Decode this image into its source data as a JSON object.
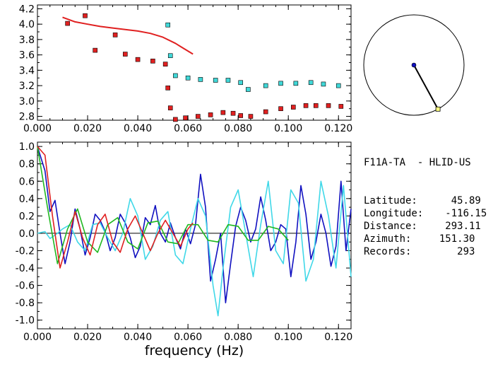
{
  "station": {
    "pair": "F11A-TA  - HLID-US",
    "rows": [
      {
        "label": "Latitude:",
        "value": "45.89"
      },
      {
        "label": "Longitude:",
        "value": "-116.15"
      },
      {
        "label": "Distance:",
        "value": "293.11"
      },
      {
        "label": "Azimuth:",
        "value": "151.30"
      },
      {
        "label": "Records:",
        "value": "293"
      }
    ]
  },
  "chart_data": [
    {
      "type": "scatter",
      "title": "",
      "xlabel": "",
      "ylabel": "",
      "xlim": [
        0.0,
        0.125
      ],
      "ylim": [
        2.75,
        4.25
      ],
      "x_ticks": [
        "0.000",
        "0.020",
        "0.040",
        "0.060",
        "0.080",
        "0.100",
        "0.120"
      ],
      "y_ticks": [
        "2.8",
        "3.0",
        "3.2",
        "3.4",
        "3.6",
        "3.8",
        "4.0",
        "4.2"
      ],
      "series": [
        {
          "color": "#e02020",
          "marker": "square",
          "x": [
            0.012,
            0.019,
            0.023,
            0.031,
            0.035,
            0.04,
            0.046,
            0.051,
            0.052,
            0.053,
            0.055,
            0.059,
            0.064,
            0.069,
            0.074,
            0.078,
            0.081,
            0.085,
            0.091,
            0.097,
            0.102,
            0.107,
            0.111,
            0.116,
            0.121
          ],
          "y": [
            4.01,
            4.11,
            3.66,
            3.86,
            3.61,
            3.54,
            3.52,
            3.48,
            3.17,
            2.91,
            2.76,
            2.78,
            2.8,
            2.82,
            2.85,
            2.84,
            2.81,
            2.8,
            2.86,
            2.9,
            2.92,
            2.94,
            2.94,
            2.94,
            2.93
          ]
        },
        {
          "color": "#40d8d8",
          "marker": "square",
          "x": [
            0.052,
            0.053,
            0.055,
            0.06,
            0.065,
            0.071,
            0.076,
            0.081,
            0.084,
            0.091,
            0.097,
            0.103,
            0.109,
            0.114,
            0.12
          ],
          "y": [
            3.99,
            3.59,
            3.33,
            3.3,
            3.28,
            3.27,
            3.27,
            3.24,
            3.15,
            3.2,
            3.23,
            3.23,
            3.24,
            3.22,
            3.2
          ]
        },
        {
          "color": "#e02020",
          "marker": "line",
          "x": [
            0.01,
            0.015,
            0.02,
            0.025,
            0.03,
            0.035,
            0.04,
            0.045,
            0.05,
            0.055,
            0.058,
            0.062
          ],
          "y": [
            4.09,
            4.03,
            4.0,
            3.97,
            3.95,
            3.93,
            3.91,
            3.88,
            3.83,
            3.75,
            3.69,
            3.61
          ]
        }
      ]
    },
    {
      "type": "line",
      "title": "",
      "xlabel": "frequency (Hz)",
      "ylabel": "",
      "xlim": [
        0.0,
        0.125
      ],
      "ylim": [
        -1.1,
        1.05
      ],
      "x_ticks": [
        "0.000",
        "0.020",
        "0.040",
        "0.060",
        "0.080",
        "0.100",
        "0.120"
      ],
      "y_ticks": [
        "-1.0",
        "-0.8",
        "-0.6",
        "-0.4",
        "-0.2",
        "0.0",
        "0.2",
        "0.4",
        "0.6",
        "0.8",
        "1.0"
      ],
      "series": [
        {
          "color": "#1010c0",
          "x": [
            0.0,
            0.003,
            0.005,
            0.007,
            0.009,
            0.011,
            0.013,
            0.015,
            0.017,
            0.019,
            0.021,
            0.023,
            0.025,
            0.027,
            0.029,
            0.031,
            0.033,
            0.035,
            0.037,
            0.039,
            0.041,
            0.043,
            0.045,
            0.047,
            0.049,
            0.051,
            0.053,
            0.055,
            0.057,
            0.059,
            0.061,
            0.063,
            0.065,
            0.067,
            0.069,
            0.071,
            0.073,
            0.075,
            0.077,
            0.079,
            0.081,
            0.083,
            0.085,
            0.087,
            0.089,
            0.091,
            0.093,
            0.095,
            0.097,
            0.099,
            0.101,
            0.103,
            0.105,
            0.107,
            0.109,
            0.111,
            0.113,
            0.115,
            0.117,
            0.119,
            0.121,
            0.123,
            0.125
          ],
          "y": [
            1.0,
            0.72,
            0.25,
            0.38,
            0.0,
            -0.35,
            -0.1,
            0.28,
            0.05,
            -0.25,
            -0.05,
            0.22,
            0.15,
            0.02,
            -0.2,
            -0.05,
            0.22,
            0.12,
            -0.05,
            -0.28,
            -0.15,
            0.18,
            0.1,
            0.32,
            0.0,
            -0.1,
            0.12,
            -0.05,
            -0.18,
            0.05,
            -0.12,
            0.1,
            0.68,
            0.3,
            -0.55,
            -0.3,
            0.0,
            -0.8,
            -0.35,
            0.08,
            0.3,
            0.15,
            -0.1,
            0.05,
            0.42,
            0.15,
            -0.2,
            -0.1,
            0.1,
            0.05,
            -0.5,
            -0.1,
            0.55,
            0.22,
            -0.3,
            -0.1,
            0.22,
            0.0,
            -0.38,
            -0.15,
            0.6,
            -0.2,
            0.28
          ]
        },
        {
          "color": "#40d8e8",
          "x": [
            0.0,
            0.003,
            0.005,
            0.008,
            0.01,
            0.013,
            0.016,
            0.019,
            0.022,
            0.025,
            0.028,
            0.031,
            0.034,
            0.037,
            0.04,
            0.043,
            0.046,
            0.049,
            0.052,
            0.055,
            0.058,
            0.061,
            0.064,
            0.067,
            0.07,
            0.072,
            0.074,
            0.077,
            0.08,
            0.083,
            0.086,
            0.089,
            0.092,
            0.095,
            0.098,
            0.101,
            0.104,
            0.107,
            0.11,
            0.113,
            0.116,
            0.119,
            0.122,
            0.125
          ],
          "y": [
            0.0,
            0.02,
            -0.06,
            0.0,
            0.05,
            0.1,
            -0.1,
            -0.2,
            0.1,
            0.12,
            -0.05,
            -0.2,
            0.0,
            0.4,
            0.2,
            -0.3,
            -0.15,
            0.15,
            0.25,
            -0.25,
            -0.35,
            0.05,
            0.4,
            0.2,
            -0.6,
            -0.95,
            -0.4,
            0.3,
            0.5,
            0.0,
            -0.5,
            0.1,
            0.6,
            -0.2,
            -0.35,
            0.5,
            0.35,
            -0.55,
            -0.3,
            0.6,
            0.2,
            -0.4,
            0.55,
            -0.5
          ]
        },
        {
          "color": "#20b820",
          "x": [
            0.0,
            0.004,
            0.008,
            0.012,
            0.016,
            0.02,
            0.024,
            0.028,
            0.032,
            0.036,
            0.04,
            0.044,
            0.048,
            0.052,
            0.056,
            0.06,
            0.064,
            0.068,
            0.072,
            0.076,
            0.08,
            0.084,
            0.088,
            0.092,
            0.096,
            0.1
          ],
          "y": [
            1.0,
            0.3,
            -0.35,
            0.05,
            0.28,
            -0.1,
            -0.22,
            0.1,
            0.18,
            -0.1,
            -0.18,
            0.12,
            0.14,
            -0.1,
            -0.12,
            0.1,
            0.1,
            -0.08,
            -0.1,
            0.1,
            0.08,
            -0.08,
            -0.08,
            0.08,
            0.05,
            -0.08
          ]
        },
        {
          "color": "#e02020",
          "x": [
            0.0,
            0.003,
            0.006,
            0.009,
            0.012,
            0.015,
            0.018,
            0.021,
            0.024,
            0.027,
            0.03,
            0.033,
            0.036,
            0.039,
            0.042,
            0.045,
            0.048,
            0.051,
            0.054,
            0.057,
            0.06,
            0.062
          ],
          "y": [
            1.0,
            0.9,
            0.2,
            -0.4,
            -0.1,
            0.25,
            -0.05,
            -0.25,
            0.1,
            0.22,
            -0.1,
            -0.22,
            0.05,
            0.2,
            0.0,
            -0.2,
            0.0,
            0.15,
            0.0,
            -0.15,
            0.05,
            0.12
          ]
        }
      ]
    },
    {
      "type": "scatter",
      "title": "",
      "description_role": "azimuth compass",
      "azimuth_deg": 151.3
    }
  ]
}
